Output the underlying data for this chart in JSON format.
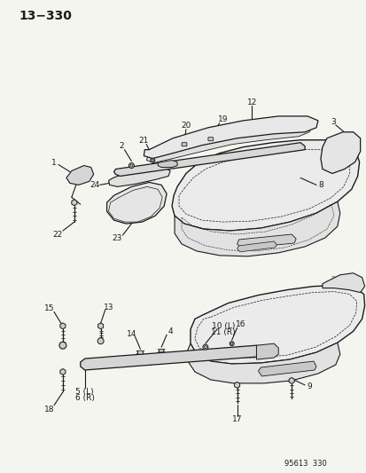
{
  "title": "13−330",
  "footer": "95613  330",
  "bg_color": "#f5f5f0",
  "line_color": "#1a1a1a",
  "fig_width": 4.14,
  "fig_height": 5.33,
  "dpi": 100,
  "label_fs": 6.5,
  "title_fs": 10
}
